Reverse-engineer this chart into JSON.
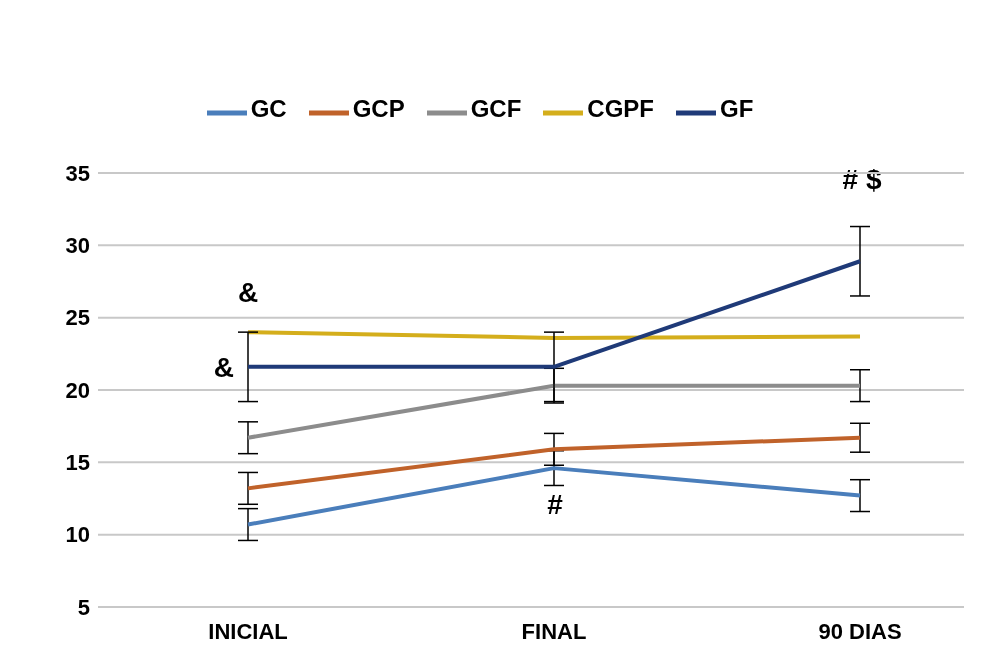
{
  "chart_data": {
    "type": "line",
    "categories": [
      "INICIAL",
      "FINAL",
      "90 DIAS"
    ],
    "series": [
      {
        "name": "GC",
        "color": "#4a7ebb",
        "values": [
          10.7,
          14.6,
          12.7
        ],
        "errors": [
          1.1,
          1.2,
          1.1
        ]
      },
      {
        "name": "GCP",
        "color": "#c0622a",
        "values": [
          13.2,
          15.9,
          16.7
        ],
        "errors": [
          1.1,
          1.1,
          1.0
        ]
      },
      {
        "name": "GCF",
        "color": "#8c8c8c",
        "values": [
          16.7,
          20.3,
          20.3
        ],
        "errors": [
          1.1,
          1.2,
          1.1
        ]
      },
      {
        "name": "CGPF",
        "color": "#d4ae1c",
        "values": [
          24.0,
          23.6,
          23.7
        ]
      },
      {
        "name": "GF",
        "color": "#1f3a78",
        "values": [
          21.6,
          21.6,
          28.9
        ],
        "errors": [
          2.4,
          2.4,
          2.4
        ]
      }
    ],
    "ylim": [
      5,
      35
    ],
    "yticks": [
      5,
      10,
      15,
      20,
      25,
      30,
      35
    ],
    "grid": "y",
    "legend": "top",
    "marker": "none",
    "line_style": "solid",
    "annotations": [
      "&",
      {
        "text": "&",
        "x": "INICIAL",
        "y": 21.6
      },
      "#",
      "# $"
    ]
  }
}
